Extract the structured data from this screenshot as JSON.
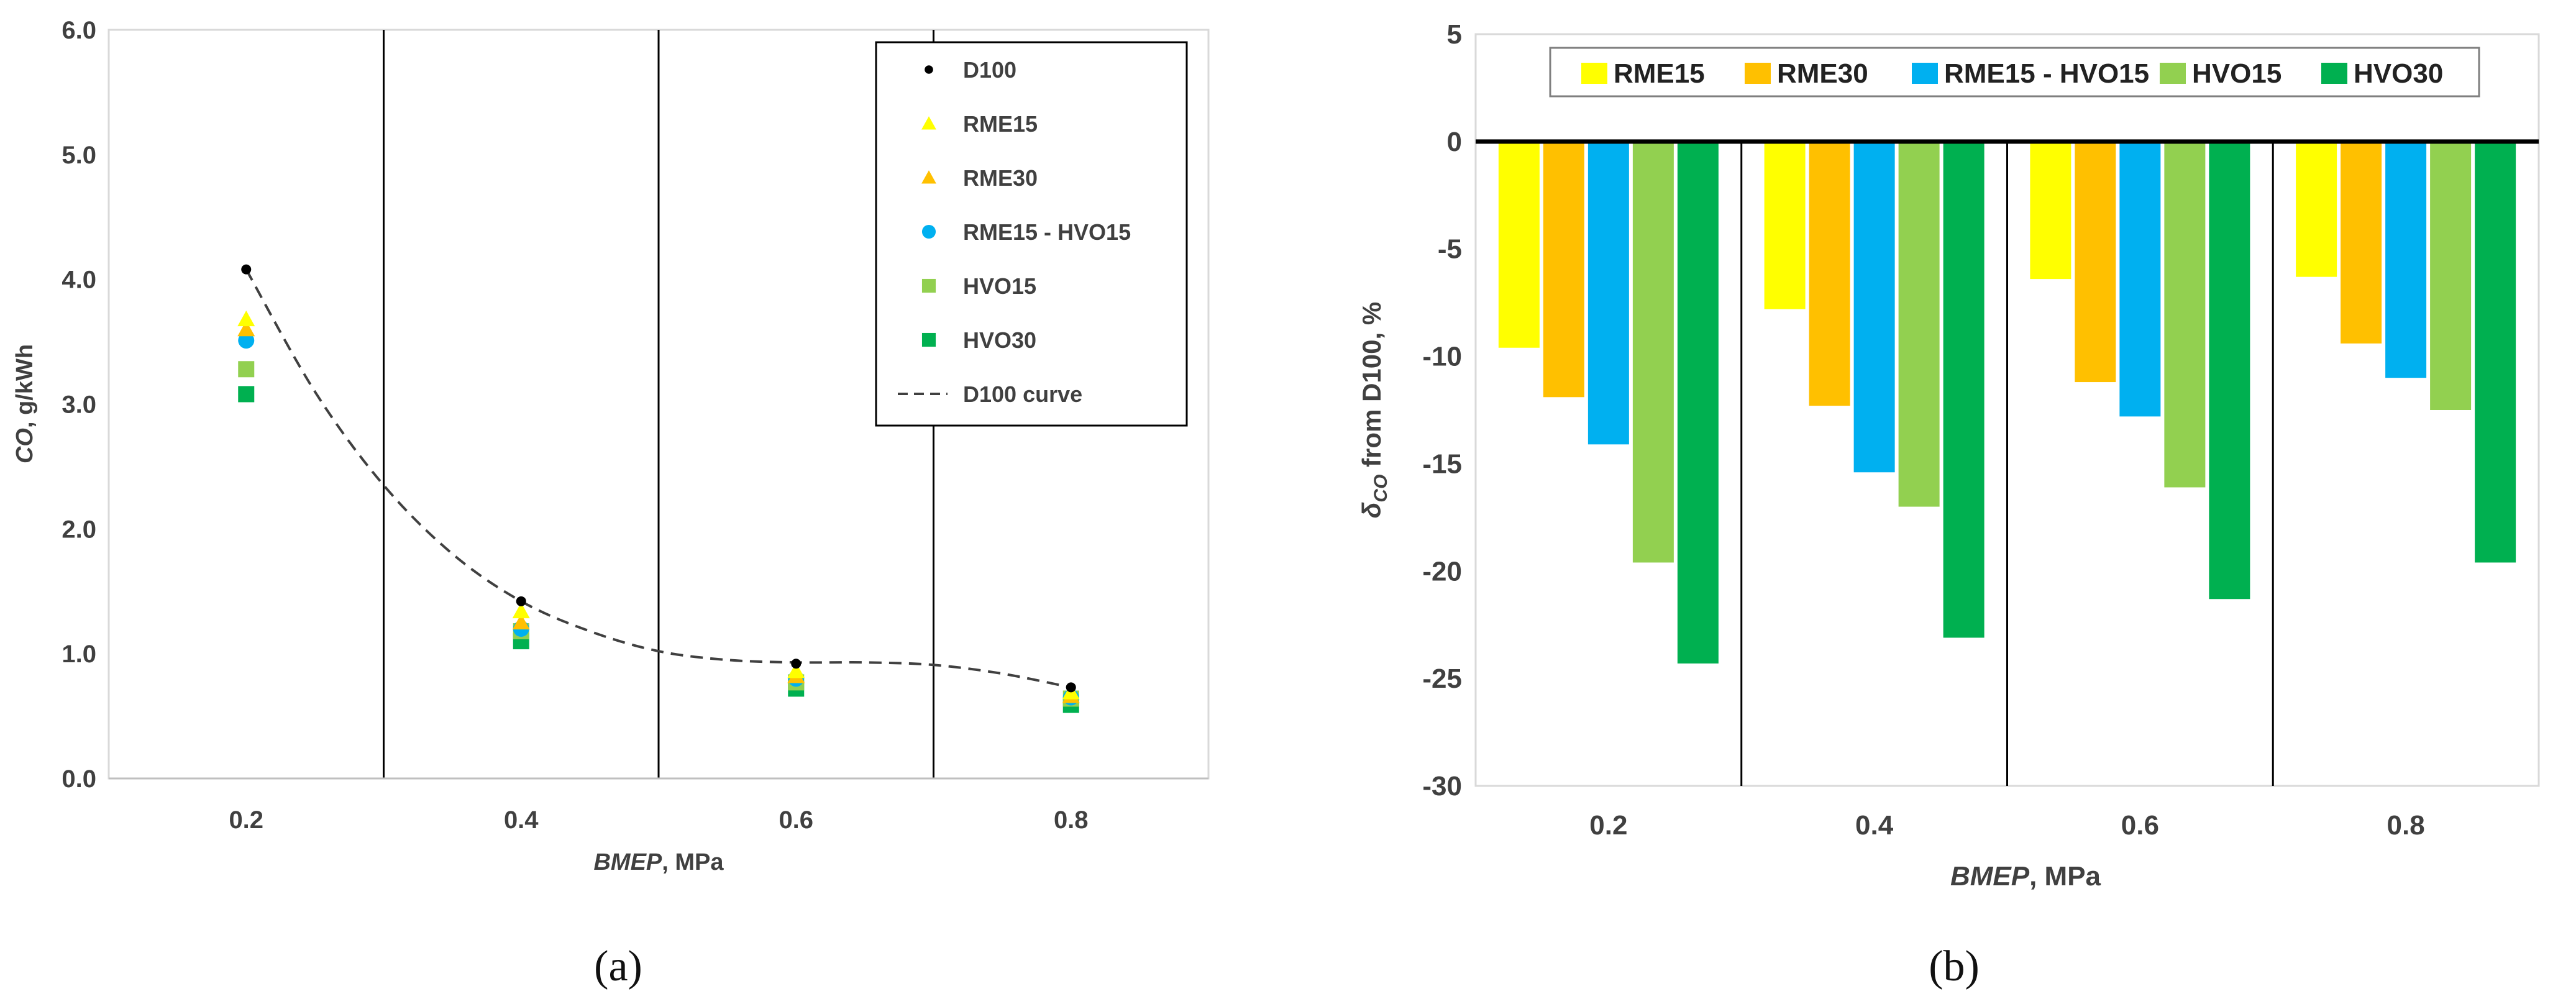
{
  "chart_data": [
    {
      "type": "scatter",
      "panel": "(a)",
      "ylabel_italic": "CO",
      "ylabel_rest": ", g/kWh",
      "xlabel_italic": "BMEP",
      "xlabel_rest": ", MPa",
      "ylim": [
        0,
        6
      ],
      "yticks": [
        "0.0",
        "1.0",
        "2.0",
        "3.0",
        "4.0",
        "5.0",
        "6.0"
      ],
      "xlim": [
        0.1,
        0.9
      ],
      "xticks": [
        "0.2",
        "0.4",
        "0.6",
        "0.8"
      ],
      "x": [
        0.2,
        0.4,
        0.6,
        0.8
      ],
      "series": [
        {
          "name": "D100",
          "marker": "dot",
          "color": "#000000",
          "values": [
            4.08,
            1.42,
            0.92,
            0.73
          ]
        },
        {
          "name": "RME15",
          "marker": "triangle",
          "color": "#ffff00",
          "values": [
            3.68,
            1.34,
            0.86,
            0.69
          ]
        },
        {
          "name": "RME30",
          "marker": "triangle",
          "color": "#ffc000",
          "values": [
            3.6,
            1.25,
            0.82,
            0.66
          ]
        },
        {
          "name": "RME15 - HVO15",
          "marker": "circle",
          "color": "#00b0f0",
          "values": [
            3.51,
            1.2,
            0.8,
            0.65
          ]
        },
        {
          "name": "HVO15",
          "marker": "square",
          "color": "#92d050",
          "values": [
            3.28,
            1.18,
            0.77,
            0.64
          ]
        },
        {
          "name": "HVO30",
          "marker": "square",
          "color": "#00b050",
          "values": [
            3.08,
            1.1,
            0.72,
            0.59
          ]
        }
      ],
      "curve": {
        "name": "D100 curve",
        "style": "dashed",
        "color": "#404040",
        "x": [
          0.2,
          0.25,
          0.3,
          0.35,
          0.4,
          0.45,
          0.5,
          0.55,
          0.6,
          0.65,
          0.7,
          0.75,
          0.8
        ],
        "y": [
          4.08,
          3.1,
          2.35,
          1.8,
          1.42,
          1.18,
          1.02,
          0.95,
          0.93,
          0.93,
          0.91,
          0.84,
          0.73
        ]
      }
    },
    {
      "type": "bar",
      "panel": "(b)",
      "ylabel_main": "δ",
      "ylabel_sub": "CO",
      "ylabel_rest": " from D100, %",
      "xlabel_italic": "BMEP",
      "xlabel_rest": ", MPa",
      "ylim": [
        -30,
        5
      ],
      "yticks": [
        "5",
        "0",
        "-5",
        "-10",
        "-15",
        "-20",
        "-25",
        "-30"
      ],
      "categories": [
        "0.2",
        "0.4",
        "0.6",
        "0.8"
      ],
      "series": [
        {
          "name": "RME15",
          "color": "#ffff00",
          "values": [
            -9.6,
            -7.8,
            -6.4,
            -6.3
          ]
        },
        {
          "name": "RME30",
          "color": "#ffc000",
          "values": [
            -11.9,
            -12.3,
            -11.2,
            -9.4
          ]
        },
        {
          "name": "RME15 - HVO15",
          "color": "#00b0f0",
          "values": [
            -14.1,
            -15.4,
            -12.8,
            -11.0
          ]
        },
        {
          "name": "HVO15",
          "color": "#92d050",
          "values": [
            -19.6,
            -17.0,
            -16.1,
            -12.5
          ]
        },
        {
          "name": "HVO30",
          "color": "#00b050",
          "values": [
            -24.3,
            -23.1,
            -21.3,
            -19.6
          ]
        }
      ]
    }
  ]
}
